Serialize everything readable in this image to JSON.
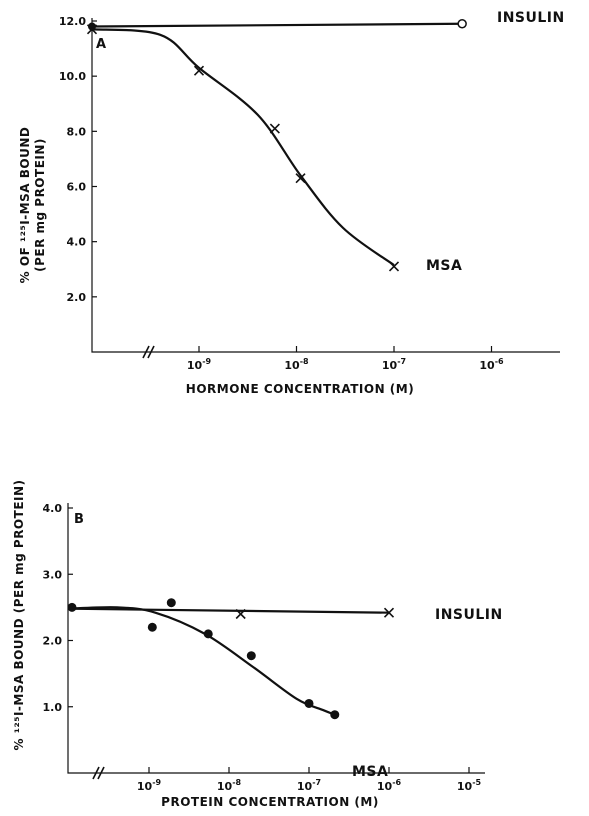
{
  "chart_data": [
    {
      "panel_label": "A",
      "type": "line",
      "xlabel": "HORMONE CONCENTRATION (M)",
      "ylabel_line1": "% OF ¹²⁵I-MSA BOUND",
      "ylabel_line2": "(PER mg PROTEIN)",
      "x_scale": "log",
      "xlim": [
        1e-10,
        1e-06
      ],
      "ylim": [
        0,
        12
      ],
      "x_ticks": [
        {
          "value": 1e-09,
          "base": "10",
          "exp": "-9"
        },
        {
          "value": 1e-08,
          "base": "10",
          "exp": "-8"
        },
        {
          "value": 1e-07,
          "base": "10",
          "exp": "-7"
        },
        {
          "value": 1e-06,
          "base": "10",
          "exp": "-6"
        }
      ],
      "y_ticks": [
        {
          "value": 2,
          "label": "2.0"
        },
        {
          "value": 4,
          "label": "4.0"
        },
        {
          "value": 6,
          "label": "6.0"
        },
        {
          "value": 8,
          "label": "8.0"
        },
        {
          "value": 10,
          "label": "10.0"
        },
        {
          "value": 12,
          "label": "12.0"
        }
      ],
      "axis_break": true,
      "series": [
        {
          "name": "INSULIN",
          "marker": "circle-open",
          "points": [
            {
              "x": 0,
              "y": 11.8,
              "zero_dose": true
            },
            {
              "x": 5e-07,
              "y": 11.9
            }
          ]
        },
        {
          "name": "MSA",
          "marker": "x",
          "points": [
            {
              "x": 0,
              "y": 11.7,
              "zero_dose": true
            },
            {
              "x": 1e-09,
              "y": 10.2
            },
            {
              "x": 6e-09,
              "y": 8.1
            },
            {
              "x": 1.1e-08,
              "y": 6.3
            },
            {
              "x": 1e-07,
              "y": 3.1
            }
          ]
        }
      ]
    },
    {
      "panel_label": "B",
      "type": "line",
      "xlabel": "PROTEIN CONCENTRATION (M)",
      "ylabel_line1": "% ¹²⁵I-MSA BOUND (PER mg PROTEIN)",
      "x_scale": "log",
      "xlim": [
        1e-10,
        1e-05
      ],
      "ylim": [
        0,
        4
      ],
      "x_ticks": [
        {
          "value": 1e-09,
          "base": "10",
          "exp": "-9"
        },
        {
          "value": 1e-08,
          "base": "10",
          "exp": "-8"
        },
        {
          "value": 1e-07,
          "base": "10",
          "exp": "-7"
        },
        {
          "value": 1e-06,
          "base": "10",
          "exp": "-6"
        },
        {
          "value": 1e-05,
          "base": "10",
          "exp": "-5"
        }
      ],
      "y_ticks": [
        {
          "value": 1,
          "label": "1.0"
        },
        {
          "value": 2,
          "label": "2.0"
        },
        {
          "value": 3,
          "label": "3.0"
        },
        {
          "value": 4,
          "label": "4.0"
        }
      ],
      "axis_break": true,
      "series": [
        {
          "name": "INSULIN",
          "marker": "x",
          "points": [
            {
              "x": 1.4e-08,
              "y": 2.4
            },
            {
              "x": 1e-06,
              "y": 2.42
            }
          ]
        },
        {
          "name": "MSA",
          "marker": "dot",
          "points": [
            {
              "x": 0,
              "y": 2.5,
              "zero_dose": true
            },
            {
              "x": 1.1e-09,
              "y": 2.2
            },
            {
              "x": 1.9e-09,
              "y": 2.57
            },
            {
              "x": 5.5e-09,
              "y": 2.1
            },
            {
              "x": 1.9e-08,
              "y": 1.77
            },
            {
              "x": 1e-07,
              "y": 1.05
            },
            {
              "x": 2.1e-07,
              "y": 0.88
            }
          ]
        }
      ]
    }
  ]
}
